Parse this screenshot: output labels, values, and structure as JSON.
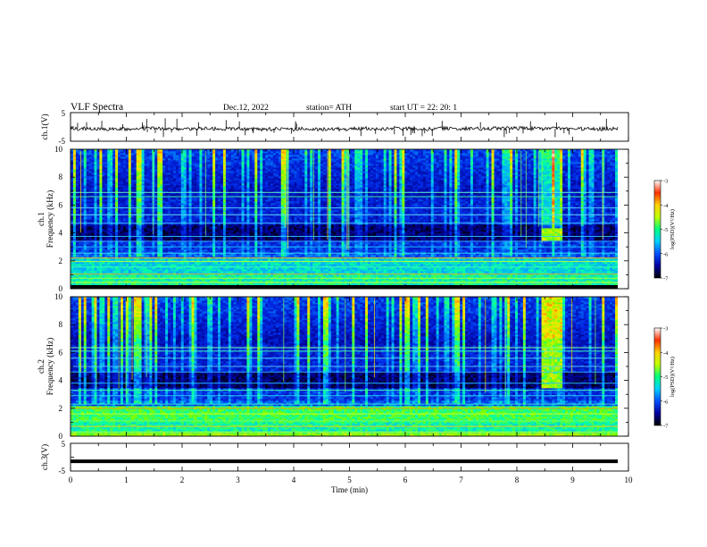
{
  "header": {
    "title": "VLF  Spectra",
    "date": "Dec.12, 2022",
    "station": "station= ATH",
    "start": "start  UT  =    22: 20: 1"
  },
  "chart_data": [
    {
      "type": "line",
      "panel": "ch1-waveform",
      "ylabel": "ch.1(V)",
      "ylim": [
        -5,
        5
      ],
      "y_ticks": [
        "5",
        "-5"
      ],
      "xlim": [
        0,
        10
      ],
      "trace_color": "#000000"
    },
    {
      "type": "heatmap",
      "panel": "ch1-spectrogram",
      "ylabel": "ch.1\nFrequency (kHz)",
      "ylabel_line1": "ch.1",
      "ylabel_line2": "Frequency (kHz)",
      "ylim": [
        0,
        10
      ],
      "y_ticks": [
        "0",
        "2",
        "4",
        "6",
        "8",
        "10"
      ],
      "xlim": [
        0,
        10
      ],
      "colorbar": {
        "label": "log(PSD)(V²/Hz)",
        "range": [
          -7,
          -3
        ],
        "ticks": [
          "-3",
          "-4",
          "-5",
          "-6",
          "-7"
        ],
        "colors": [
          "#000000",
          "#0000a0",
          "#0050ff",
          "#00d0ff",
          "#00ff80",
          "#c0ff00",
          "#ffd000",
          "#ff3000",
          "#ffffff"
        ]
      }
    },
    {
      "type": "heatmap",
      "panel": "ch2-spectrogram",
      "ylabel": "ch.2\nFrequency (kHz)",
      "ylabel_line1": "ch.2",
      "ylabel_line2": "Frequency (kHz)",
      "ylim": [
        0,
        10
      ],
      "y_ticks": [
        "0",
        "2",
        "4",
        "6",
        "8",
        "10"
      ],
      "xlim": [
        0,
        10
      ],
      "colorbar": {
        "label": "log(PSD)(V²/Hz)",
        "range": [
          -7,
          -3
        ],
        "ticks": [
          "-3",
          "-4",
          "-5",
          "-6",
          "-7"
        ],
        "colors": [
          "#000000",
          "#0000a0",
          "#0050ff",
          "#00d0ff",
          "#00ff80",
          "#c0ff00",
          "#ffd000",
          "#ff3000",
          "#ffffff"
        ]
      }
    },
    {
      "type": "line",
      "panel": "ch3-waveform",
      "ylabel": "ch.3(V)",
      "ylim": [
        -5,
        5
      ],
      "y_ticks": [
        "5",
        "-5"
      ],
      "xlim": [
        0,
        10
      ],
      "x_ticks": [
        "0",
        "1",
        "2",
        "3",
        "4",
        "5",
        "6",
        "7",
        "8",
        "9",
        "10"
      ],
      "xlabel": "Time  (min)",
      "constant_value": -1.5,
      "trace_color": "#000000"
    }
  ]
}
